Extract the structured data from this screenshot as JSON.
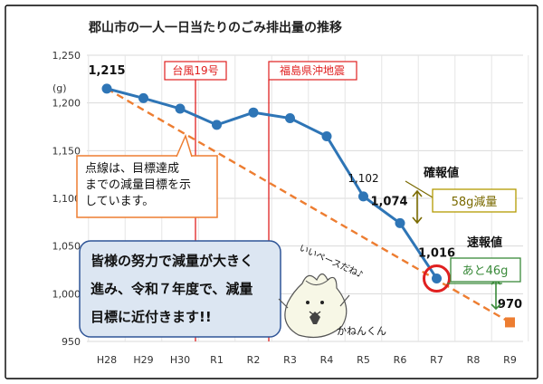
{
  "chart_data": {
    "type": "line",
    "title": "郡山市の一人一日当たりのごみ排出量の推移",
    "ylabel": "(g)",
    "categories": [
      "H28",
      "H29",
      "H30",
      "R1",
      "R2",
      "R3",
      "R4",
      "R5",
      "R6",
      "R7",
      "R8",
      "R9"
    ],
    "ylim": [
      950,
      1250
    ],
    "yticks": [
      "1,250",
      "1,200",
      "1,150",
      "1,100",
      "1,050",
      "1,000",
      "950"
    ],
    "grid": true,
    "series": [
      {
        "values": [
          1215,
          1205,
          1194,
          1177,
          1190,
          1184,
          1165,
          1102,
          1074,
          1016,
          null,
          null
        ],
        "color": "#2e75b6"
      },
      {
        "values": [
          1215,
          null,
          null,
          null,
          null,
          null,
          null,
          null,
          null,
          null,
          null,
          970
        ],
        "color": "#ed7d31",
        "style": "dashed"
      }
    ],
    "data_labels": [
      {
        "category": "H28",
        "text": "1,215"
      },
      {
        "category": "R5",
        "text": "1,102"
      },
      {
        "category": "R6",
        "text": "1,074"
      },
      {
        "category": "R7",
        "text": "1,016"
      },
      {
        "category": "R9",
        "text": "970"
      }
    ],
    "events": [
      {
        "category_after": "H30",
        "label": "台風19号"
      },
      {
        "category_after": "R2",
        "label": "福島県沖地震"
      }
    ],
    "annotations": {
      "callout": "点線は、目標達成までの減量目標を示しています。",
      "confirmed": "確報値",
      "preliminary": "速報値",
      "reduced": "58g減量",
      "remaining": "あと46g",
      "message": "皆様の努力で減量が大きく進み、令和７年度で、減量目標に近付きます!!",
      "speech": "いいペースだね♪",
      "mascot": "かねんくん"
    },
    "colors": {
      "actual": "#2e75b6",
      "target": "#ed7d31",
      "event": "#e02020",
      "grid": "#d9d9d9",
      "olive": "#7a6a00",
      "green": "#3a8a3a",
      "message_bg": "#dce6f2",
      "message_border": "#2f5597"
    }
  }
}
